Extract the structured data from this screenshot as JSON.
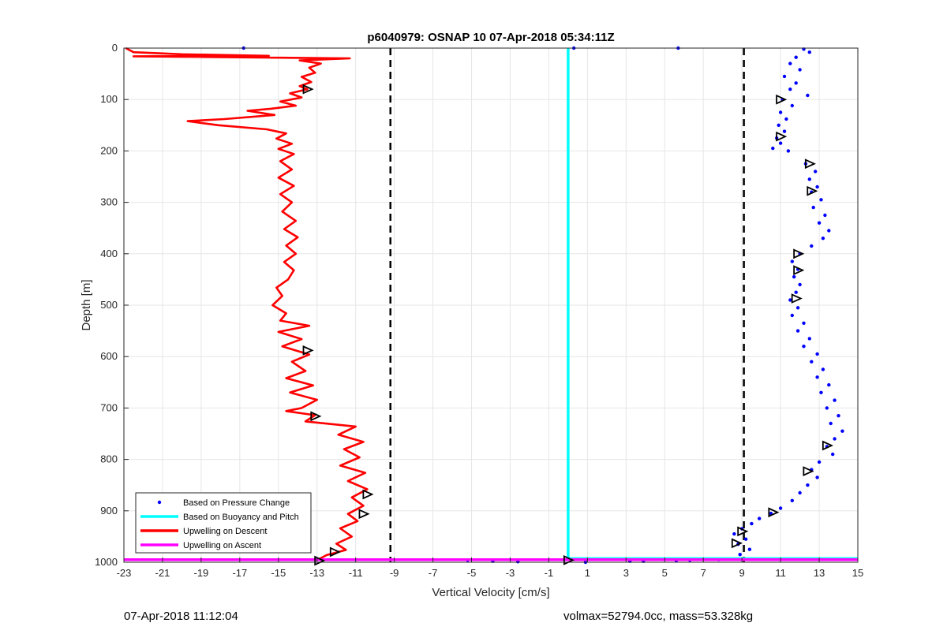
{
  "chart_data": {
    "type": "line",
    "title": "p6040979: OSNAP 10 07-Apr-2018 05:34:11Z",
    "xlabel": "Vertical Velocity [cm/s]",
    "ylabel": "Depth [m]",
    "xlim": [
      -23,
      15
    ],
    "ylim": [
      1000,
      0
    ],
    "y_reversed": true,
    "grid": true,
    "legend_position": "bottom-left",
    "x_ticks": [
      "-23",
      "-21",
      "-19",
      "-17",
      "-15",
      "-13",
      "-11",
      "-9",
      "-7",
      "-5",
      "-3",
      "-1",
      "1",
      "3",
      "5",
      "7",
      "9",
      "11",
      "13",
      "15"
    ],
    "y_ticks": [
      "0",
      "100",
      "200",
      "300",
      "400",
      "500",
      "600",
      "700",
      "800",
      "900",
      "1000"
    ],
    "reference_lines": [
      {
        "style": "dashed",
        "color": "#000000",
        "x": -9.2
      },
      {
        "style": "dashed",
        "color": "#000000",
        "x": 9.1
      }
    ],
    "series": [
      {
        "name": "Based on Pressure Change",
        "kind": "points",
        "color": "#0000ff",
        "points": [
          [
            -16.8,
            0
          ],
          [
            0.3,
            0
          ],
          [
            5.7,
            0
          ],
          [
            12.2,
            2
          ],
          [
            12.5,
            8
          ],
          [
            11.8,
            18
          ],
          [
            11.5,
            30
          ],
          [
            12.0,
            42
          ],
          [
            11.2,
            55
          ],
          [
            11.8,
            68
          ],
          [
            11.5,
            80
          ],
          [
            12.4,
            92
          ],
          [
            11.1,
            100
          ],
          [
            11.6,
            112
          ],
          [
            11.0,
            125
          ],
          [
            11.3,
            138
          ],
          [
            10.9,
            150
          ],
          [
            11.2,
            162
          ],
          [
            10.8,
            175
          ],
          [
            11.0,
            185
          ],
          [
            10.6,
            195
          ],
          [
            11.4,
            200
          ],
          [
            12.3,
            225
          ],
          [
            12.8,
            240
          ],
          [
            12.5,
            255
          ],
          [
            12.9,
            270
          ],
          [
            12.6,
            280
          ],
          [
            13.1,
            295
          ],
          [
            12.7,
            310
          ],
          [
            13.3,
            325
          ],
          [
            13.0,
            340
          ],
          [
            13.5,
            355
          ],
          [
            13.2,
            370
          ],
          [
            12.6,
            385
          ],
          [
            12.0,
            400
          ],
          [
            11.6,
            415
          ],
          [
            11.9,
            430
          ],
          [
            11.7,
            445
          ],
          [
            12.0,
            460
          ],
          [
            11.8,
            475
          ],
          [
            11.5,
            490
          ],
          [
            11.9,
            505
          ],
          [
            11.6,
            520
          ],
          [
            12.2,
            535
          ],
          [
            11.9,
            550
          ],
          [
            12.5,
            565
          ],
          [
            12.2,
            580
          ],
          [
            12.9,
            595
          ],
          [
            12.6,
            610
          ],
          [
            13.2,
            625
          ],
          [
            12.9,
            640
          ],
          [
            13.5,
            655
          ],
          [
            13.1,
            670
          ],
          [
            13.8,
            685
          ],
          [
            13.4,
            700
          ],
          [
            14.0,
            715
          ],
          [
            13.6,
            730
          ],
          [
            14.2,
            745
          ],
          [
            13.8,
            760
          ],
          [
            13.4,
            775
          ],
          [
            13.7,
            790
          ],
          [
            13.0,
            805
          ],
          [
            12.6,
            820
          ],
          [
            12.9,
            835
          ],
          [
            12.4,
            850
          ],
          [
            12.0,
            865
          ],
          [
            11.6,
            880
          ],
          [
            11.0,
            895
          ],
          [
            10.5,
            905
          ],
          [
            9.9,
            915
          ],
          [
            9.5,
            925
          ],
          [
            9.0,
            935
          ],
          [
            8.6,
            945
          ],
          [
            9.2,
            955
          ],
          [
            8.8,
            965
          ],
          [
            9.4,
            975
          ],
          [
            8.9,
            985
          ],
          [
            -5.2,
            996
          ],
          [
            -3.9,
            998
          ],
          [
            -2.6,
            999
          ],
          [
            0.9,
            1000
          ],
          [
            3.2,
            998
          ],
          [
            3.9,
            998
          ],
          [
            5.6,
            997
          ],
          [
            6.3,
            996
          ],
          [
            7.8,
            995
          ]
        ]
      },
      {
        "name": "Based on Buoyancy and Pitch",
        "kind": "line",
        "color": "#00ffff",
        "points": [
          [
            0.0,
            0
          ],
          [
            0.0,
            993
          ],
          [
            15,
            993
          ]
        ]
      },
      {
        "name": "Upwelling on Descent",
        "kind": "line",
        "color": "#ff0000",
        "points": [
          [
            -22.9,
            0
          ],
          [
            -22.5,
            8
          ],
          [
            -20.0,
            12
          ],
          [
            -15.5,
            15
          ],
          [
            -22.5,
            16
          ],
          [
            -11.3,
            20
          ],
          [
            -13.9,
            24
          ],
          [
            -12.8,
            30
          ],
          [
            -13.4,
            38
          ],
          [
            -13.1,
            48
          ],
          [
            -13.8,
            56
          ],
          [
            -13.3,
            66
          ],
          [
            -13.9,
            74
          ],
          [
            -13.5,
            80
          ],
          [
            -14.4,
            88
          ],
          [
            -13.8,
            96
          ],
          [
            -14.9,
            104
          ],
          [
            -14.1,
            112
          ],
          [
            -15.4,
            118
          ],
          [
            -16.6,
            122
          ],
          [
            -15.2,
            130
          ],
          [
            -17.8,
            138
          ],
          [
            -19.7,
            142
          ],
          [
            -18.1,
            150
          ],
          [
            -15.6,
            158
          ],
          [
            -14.6,
            166
          ],
          [
            -15.1,
            176
          ],
          [
            -14.3,
            186
          ],
          [
            -15.0,
            196
          ],
          [
            -14.2,
            206
          ],
          [
            -14.9,
            220
          ],
          [
            -14.3,
            236
          ],
          [
            -15.0,
            252
          ],
          [
            -14.2,
            268
          ],
          [
            -14.9,
            284
          ],
          [
            -14.3,
            300
          ],
          [
            -14.8,
            318
          ],
          [
            -14.1,
            336
          ],
          [
            -14.7,
            352
          ],
          [
            -14.0,
            368
          ],
          [
            -14.6,
            384
          ],
          [
            -14.1,
            400
          ],
          [
            -14.7,
            416
          ],
          [
            -14.2,
            432
          ],
          [
            -14.5,
            450
          ],
          [
            -15.1,
            466
          ],
          [
            -14.8,
            482
          ],
          [
            -15.3,
            500
          ],
          [
            -14.6,
            516
          ],
          [
            -14.9,
            530
          ],
          [
            -13.4,
            540
          ],
          [
            -15.0,
            552
          ],
          [
            -13.8,
            566
          ],
          [
            -14.8,
            580
          ],
          [
            -13.4,
            596
          ],
          [
            -14.3,
            610
          ],
          [
            -13.6,
            628
          ],
          [
            -14.6,
            642
          ],
          [
            -13.2,
            656
          ],
          [
            -14.4,
            670
          ],
          [
            -13.0,
            684
          ],
          [
            -13.8,
            700
          ],
          [
            -14.6,
            706
          ],
          [
            -13.1,
            714
          ],
          [
            -13.6,
            726
          ],
          [
            -11.0,
            736
          ],
          [
            -11.9,
            752
          ],
          [
            -10.6,
            766
          ],
          [
            -11.6,
            780
          ],
          [
            -10.8,
            796
          ],
          [
            -11.8,
            812
          ],
          [
            -10.5,
            826
          ],
          [
            -11.4,
            842
          ],
          [
            -10.4,
            858
          ],
          [
            -11.2,
            874
          ],
          [
            -10.6,
            890
          ],
          [
            -11.4,
            906
          ],
          [
            -10.9,
            920
          ],
          [
            -11.8,
            934
          ],
          [
            -11.2,
            950
          ],
          [
            -12.0,
            964
          ],
          [
            -11.5,
            976
          ],
          [
            -12.5,
            986
          ],
          [
            -13.0,
            996
          ]
        ]
      },
      {
        "name": "Upwelling on Ascent",
        "kind": "line",
        "color": "#ff00ff",
        "points": [
          [
            -23,
            995
          ],
          [
            -13,
            995
          ],
          [
            0.0,
            995
          ],
          [
            15,
            995
          ]
        ]
      },
      {
        "name": "",
        "kind": "markers",
        "color": "#000000",
        "points": [
          [
            -13.5,
            80
          ],
          [
            -13.5,
            588
          ],
          [
            -13.1,
            716
          ],
          [
            -10.4,
            868
          ],
          [
            -10.6,
            906
          ],
          [
            -12.1,
            980
          ],
          [
            -12.9,
            997
          ],
          [
            11.0,
            100
          ],
          [
            11.0,
            172
          ],
          [
            12.5,
            225
          ],
          [
            12.6,
            278
          ],
          [
            11.9,
            400
          ],
          [
            11.9,
            432
          ],
          [
            11.8,
            487
          ],
          [
            13.4,
            773
          ],
          [
            12.4,
            823
          ],
          [
            10.6,
            903
          ],
          [
            9.0,
            940
          ],
          [
            8.7,
            963
          ],
          [
            0.0,
            996
          ]
        ]
      }
    ]
  },
  "legend": {
    "items": [
      {
        "label": "Based on Pressure Change",
        "color": "#0000ff",
        "kind": "point"
      },
      {
        "label": "Based on Buoyancy and Pitch",
        "color": "#00ffff",
        "kind": "line"
      },
      {
        "label": "Upwelling on Descent",
        "color": "#ff0000",
        "kind": "line"
      },
      {
        "label": "Upwelling on Ascent",
        "color": "#ff00ff",
        "kind": "line"
      }
    ]
  },
  "footer": {
    "left": "07-Apr-2018 11:12:04",
    "right": "volmax=52794.0cc, mass=53.328kg"
  }
}
